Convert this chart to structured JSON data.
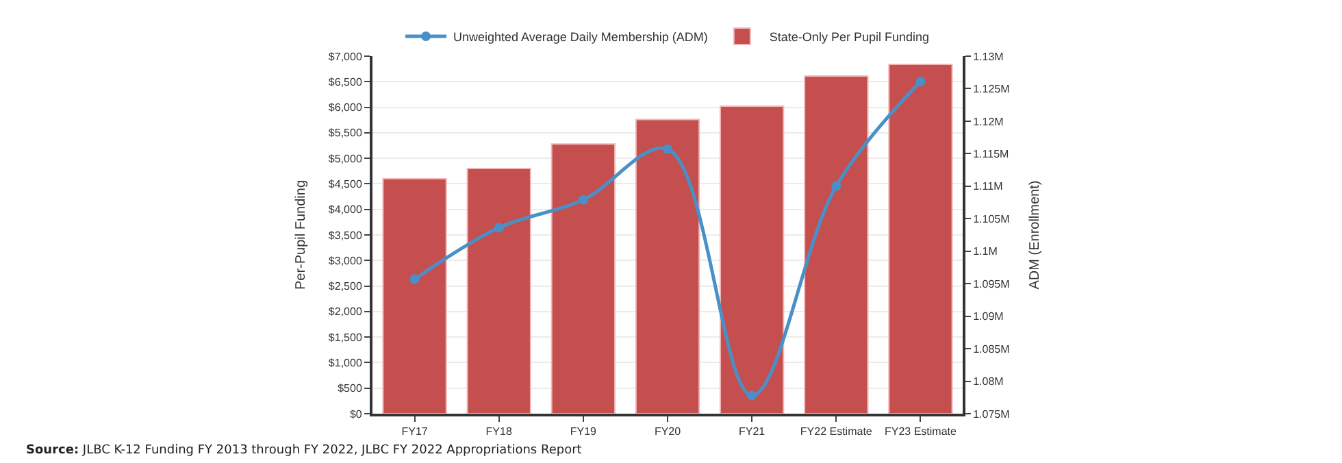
{
  "chart_data": {
    "type": "bar",
    "categories": [
      "FY17",
      "FY18",
      "FY19",
      "FY20",
      "FY21",
      "FY22 Estimate",
      "FY23 Estimate"
    ],
    "series": [
      {
        "name": "Unweighted Average Daily Membership (ADM)",
        "type": "line",
        "axis": "y2",
        "color": "#4a90c8",
        "marker": "circle",
        "values": [
          1.0957,
          1.1036,
          1.1079,
          1.1157,
          1.0778,
          1.11,
          1.1261
        ]
      },
      {
        "name": "State-Only Per Pupil Funding",
        "color": "#c54f4f",
        "values": [
          4600,
          4800,
          5280,
          5760,
          6020,
          6610,
          6840
        ]
      }
    ],
    "ylabel": "Per-Pupil Funding",
    "y2label": "ADM (Enrollment)",
    "ylim": [
      0,
      7000
    ],
    "yticks": [
      {
        "value": 0,
        "label": "$0"
      },
      {
        "value": 500,
        "label": "$500"
      },
      {
        "value": 1000,
        "label": "$1,000"
      },
      {
        "value": 1500,
        "label": "$1,500"
      },
      {
        "value": 2000,
        "label": "$2,000"
      },
      {
        "value": 2500,
        "label": "$2,500"
      },
      {
        "value": 3000,
        "label": "$3,000"
      },
      {
        "value": 3500,
        "label": "$3,500"
      },
      {
        "value": 4000,
        "label": "$4,000"
      },
      {
        "value": 4500,
        "label": "$4,500"
      },
      {
        "value": 5000,
        "label": "$5,000"
      },
      {
        "value": 5500,
        "label": "$5,500"
      },
      {
        "value": 6000,
        "label": "$6,000"
      },
      {
        "value": 6500,
        "label": "$6,500"
      },
      {
        "value": 7000,
        "label": "$7,000"
      }
    ],
    "y2lim": [
      1.075,
      1.13
    ],
    "y2ticks": [
      {
        "value": 1.075,
        "label": "1.075M"
      },
      {
        "value": 1.08,
        "label": "1.08M"
      },
      {
        "value": 1.085,
        "label": "1.085M"
      },
      {
        "value": 1.09,
        "label": "1.09M"
      },
      {
        "value": 1.095,
        "label": "1.095M"
      },
      {
        "value": 1.1,
        "label": "1.1M"
      },
      {
        "value": 1.105,
        "label": "1.105M"
      },
      {
        "value": 1.11,
        "label": "1.11M"
      },
      {
        "value": 1.115,
        "label": "1.115M"
      },
      {
        "value": 1.12,
        "label": "1.12M"
      },
      {
        "value": 1.125,
        "label": "1.125M"
      },
      {
        "value": 1.13,
        "label": "1.13M"
      }
    ],
    "grid": "y",
    "legend": "top",
    "annotations": [
      "Source: JLBC K-12 Funding FY 2013 through FY 2022, JLBC FY 2022 Appropriations Report"
    ]
  }
}
